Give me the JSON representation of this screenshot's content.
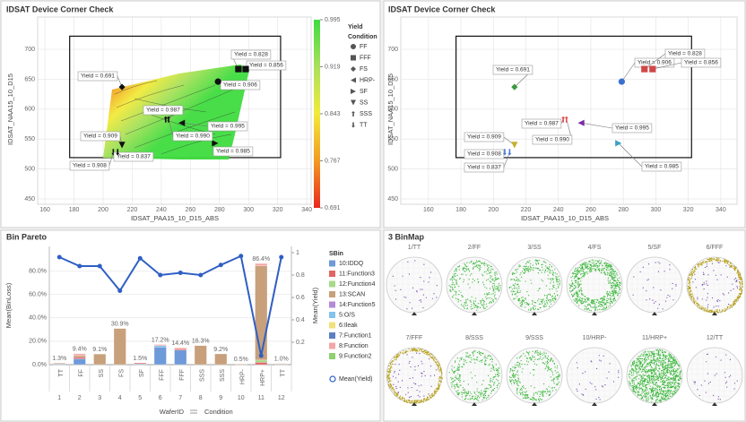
{
  "chart_data": [
    {
      "type": "contour-scatter",
      "title": "IDSAT Device Corner Check",
      "x_label": "IDSAT_PAA15_10_D15_ABS",
      "y_label": "IDSAT_NAA15_10_D15",
      "xlim": [
        155,
        343
      ],
      "ylim": [
        441,
        754
      ],
      "xticks": [
        160,
        180,
        200,
        220,
        240,
        260,
        280,
        300,
        320,
        340
      ],
      "yticks": [
        450,
        500,
        550,
        600,
        650,
        700
      ],
      "grid": true,
      "box": {
        "x": [
          177,
          322
        ],
        "y": [
          519,
          722
        ]
      },
      "marker_color": "#111111",
      "legend_title": [
        "Yield",
        "Condition"
      ],
      "clim": [
        0.691,
        0.995
      ],
      "cticks": [
        0.995,
        0.919,
        0.843,
        0.767,
        0.691
      ],
      "colormap": [
        "#e8291c",
        "#f39a22",
        "#f2ea3a",
        "#a9e15a",
        "#3fdc3f"
      ],
      "series": [
        {
          "name": "FF",
          "marker": "circle",
          "x": [
            279
          ],
          "y": [
            646
          ],
          "point_labels": [
            "Yield = 0.906"
          ]
        },
        {
          "name": "FFF",
          "marker": "square",
          "x": [
            293,
            298
          ],
          "y": [
            667,
            667
          ],
          "point_labels": [
            "Yield = 0.828",
            "Yield = 0.856"
          ]
        },
        {
          "name": "FS",
          "marker": "diamond",
          "x": [
            213
          ],
          "y": [
            637
          ],
          "point_labels": [
            "Yield = 0.691"
          ]
        },
        {
          "name": "HRP-",
          "marker": "triangle-left",
          "x": [
            254
          ],
          "y": [
            577
          ],
          "point_labels": [
            "Yield = 0.995"
          ]
        },
        {
          "name": "SF",
          "marker": "triangle-right",
          "x": [
            277
          ],
          "y": [
            543
          ],
          "point_labels": [
            "Yield = 0.985"
          ]
        },
        {
          "name": "SS",
          "marker": "triangle-down",
          "x": [
            213
          ],
          "y": [
            540
          ],
          "point_labels": [
            "Yield = 0.909"
          ]
        },
        {
          "name": "SSS",
          "marker": "arrow-up",
          "x": [
            243,
            245
          ],
          "y": [
            583,
            583
          ],
          "point_labels": [
            "Yield = 0.987",
            "Yield = 0.990"
          ]
        },
        {
          "name": "TT",
          "marker": "arrow-down",
          "x": [
            207,
            210
          ],
          "y": [
            528,
            528
          ],
          "point_labels": [
            "Yield = 0.908",
            "Yield = 0.837"
          ]
        }
      ]
    },
    {
      "type": "scatter",
      "title": "IDSAT Device Corner Check",
      "x_label": "IDSAT_PAA15_10_D15_ABS",
      "y_label": "IDSAT_NAA15_10_D15",
      "xlim": [
        143,
        350
      ],
      "ylim": [
        441,
        754
      ],
      "xticks": [
        160,
        180,
        200,
        220,
        240,
        260,
        280,
        300,
        320,
        340
      ],
      "yticks": [
        450,
        500,
        550,
        600,
        650,
        700
      ],
      "grid": true,
      "box": {
        "x": [
          177,
          322
        ],
        "y": [
          519,
          722
        ]
      },
      "series": [
        {
          "name": "FF",
          "marker": "circle",
          "color": "#3b6fd0",
          "x": [
            279
          ],
          "y": [
            646
          ],
          "point_labels": [
            "Yield = 0.906"
          ]
        },
        {
          "name": "FFF",
          "marker": "square",
          "color": "#d24646",
          "x": [
            293,
            298
          ],
          "y": [
            667,
            667
          ],
          "point_labels": [
            "Yield = 0.828",
            "Yield = 0.856"
          ]
        },
        {
          "name": "FS",
          "marker": "diamond",
          "color": "#3d9a3d",
          "x": [
            213
          ],
          "y": [
            637
          ],
          "point_labels": [
            "Yield = 0.691"
          ]
        },
        {
          "name": "HRP-",
          "marker": "triangle-left",
          "color": "#7a2aa8",
          "x": [
            254
          ],
          "y": [
            577
          ],
          "point_labels": [
            "Yield = 0.995"
          ]
        },
        {
          "name": "SF",
          "marker": "triangle-right",
          "color": "#3aa0c8",
          "x": [
            277
          ],
          "y": [
            543
          ],
          "point_labels": [
            "Yield = 0.985"
          ]
        },
        {
          "name": "SS",
          "marker": "triangle-down",
          "color": "#c6ae2e",
          "x": [
            213
          ],
          "y": [
            540
          ],
          "point_labels": [
            "Yield = 0.909"
          ]
        },
        {
          "name": "SSS",
          "marker": "arrow-up",
          "color": "#e05050",
          "x": [
            243,
            245
          ],
          "y": [
            583,
            583
          ],
          "point_labels": [
            "Yield = 0.987",
            "Yield = 0.990"
          ]
        },
        {
          "name": "TT",
          "marker": "arrow-down",
          "color": "#4a7ad8",
          "x": [
            207,
            210
          ],
          "y": [
            528,
            528
          ],
          "point_labels": [
            "Yield = 0.908",
            "Yield = 0.837"
          ]
        }
      ]
    },
    {
      "type": "stacked-bar-line",
      "title": "Bin Pareto",
      "categories": [
        "1",
        "2",
        "3",
        "4",
        "5",
        "6",
        "7",
        "8",
        "9",
        "10",
        "11",
        "12"
      ],
      "conditions": [
        "TT",
        "FF",
        "SS",
        "FS",
        "SF",
        "FFF",
        "FFF",
        "SSS",
        "SSS",
        "HRP-",
        "HRP+",
        "TT"
      ],
      "x_label": "WaferID",
      "x_label_2": "Condition",
      "y_label": "Mean(BinLoss)",
      "y2_label": "Mean(Yield)",
      "ylim": [
        0,
        101
      ],
      "yticks": [
        {
          "value": 0,
          "label": "0.0%"
        },
        {
          "value": 20,
          "label": "20.0%"
        },
        {
          "value": 40,
          "label": "40.0%"
        },
        {
          "value": 60,
          "label": "60.0%"
        },
        {
          "value": 80,
          "label": "80.0%"
        }
      ],
      "y2lim": [
        0,
        1.056
      ],
      "y2ticks": [
        0.2,
        0.4,
        0.6,
        0.8,
        1
      ],
      "grid": true,
      "legend_title": "SBin",
      "series": [
        {
          "name": "10:IDDQ",
          "color": "#6f9ad9",
          "values": [
            0.5,
            5.0,
            0,
            0,
            0.7,
            15.0,
            12.5,
            0,
            0,
            0,
            0,
            0.4
          ]
        },
        {
          "name": "11:Function3",
          "color": "#e06666",
          "values": [
            0,
            1.5,
            0,
            0,
            0.8,
            0,
            1.0,
            0,
            0,
            0,
            2.0,
            0
          ]
        },
        {
          "name": "12:Function4",
          "color": "#a8d98a",
          "values": [
            0,
            0,
            0,
            0,
            0,
            0,
            0,
            0,
            0,
            0,
            1.9,
            0
          ]
        },
        {
          "name": "13:SCAN",
          "color": "#c8a07c",
          "values": [
            0.8,
            1.4,
            9.1,
            30.9,
            0,
            0,
            0,
            16.3,
            9.2,
            0.5,
            80.5,
            0.6
          ]
        },
        {
          "name": "14:Function5",
          "color": "#b48ad6",
          "values": [
            0,
            0,
            0,
            0,
            0,
            0,
            0,
            0,
            0,
            0,
            0,
            0
          ]
        },
        {
          "name": "5:O/S",
          "color": "#82c3ec",
          "values": [
            0,
            0,
            0,
            0,
            0,
            1.2,
            0,
            0,
            0,
            0,
            0,
            0
          ]
        },
        {
          "name": "6:Ileak",
          "color": "#f2e07a",
          "values": [
            0,
            0,
            0,
            0,
            0,
            0,
            0,
            0,
            0,
            0,
            0,
            0
          ]
        },
        {
          "name": "7:Function1",
          "color": "#5a80c0",
          "values": [
            0,
            0,
            0,
            0,
            0,
            0,
            0,
            0,
            0,
            0,
            0,
            0
          ]
        },
        {
          "name": "8:Function",
          "color": "#f4a6a6",
          "values": [
            0,
            1.5,
            0,
            0,
            0,
            1.0,
            0.9,
            0,
            0,
            0,
            2.0,
            0
          ]
        },
        {
          "name": "9:Function2",
          "color": "#8fd070",
          "values": [
            0,
            0,
            0,
            0,
            0,
            0,
            0,
            0,
            0,
            0,
            0,
            0
          ]
        }
      ],
      "totals": [
        1.3,
        9.4,
        9.1,
        30.9,
        1.5,
        17.2,
        14.4,
        16.3,
        9.2,
        0.5,
        86.4,
        1.0
      ],
      "total_labels": [
        "1.3%",
        "9.4%",
        "9.1%",
        "30.9%",
        "1.5%",
        "17.2%",
        "14.4%",
        "16.3%",
        "9.2%",
        "0.5%",
        "86.4%",
        "1.0%"
      ],
      "line": {
        "name": "Mean(Yield)",
        "color": "#2f5fc4",
        "axis": "y2",
        "values": [
          0.96,
          0.88,
          0.88,
          0.66,
          0.95,
          0.8,
          0.82,
          0.8,
          0.89,
          0.97,
          0.08,
          0.96
        ]
      }
    },
    {
      "type": "wafermap",
      "title": "3 BinMap",
      "wafers": [
        {
          "label": "1/TT",
          "pattern": "sparse",
          "color": "#7b4fb0"
        },
        {
          "label": "2/FF",
          "pattern": "ring",
          "color": "#3cb83c"
        },
        {
          "label": "3/SS",
          "pattern": "ring",
          "color": "#3cb83c"
        },
        {
          "label": "4/FS",
          "pattern": "ring-dense",
          "color": "#3cb83c"
        },
        {
          "label": "5/SF",
          "pattern": "sparse",
          "color": "#7b4fb0"
        },
        {
          "label": "6/FFF",
          "pattern": "edge",
          "color": "#7b4fb0",
          "edge_color": "#b9a21e"
        },
        {
          "label": "7/FFF",
          "pattern": "edge",
          "color": "#7b4fb0",
          "edge_color": "#b9a21e"
        },
        {
          "label": "8/SSS",
          "pattern": "ring",
          "color": "#3cb83c"
        },
        {
          "label": "9/SSS",
          "pattern": "ring",
          "color": "#3cb83c"
        },
        {
          "label": "10/HRP-",
          "pattern": "sparse",
          "color": "#7b4fb0"
        },
        {
          "label": "11/HRP+",
          "pattern": "full",
          "color": "#3cb83c"
        },
        {
          "label": "12/TT",
          "pattern": "sparse",
          "color": "#7b4fb0"
        }
      ]
    }
  ]
}
